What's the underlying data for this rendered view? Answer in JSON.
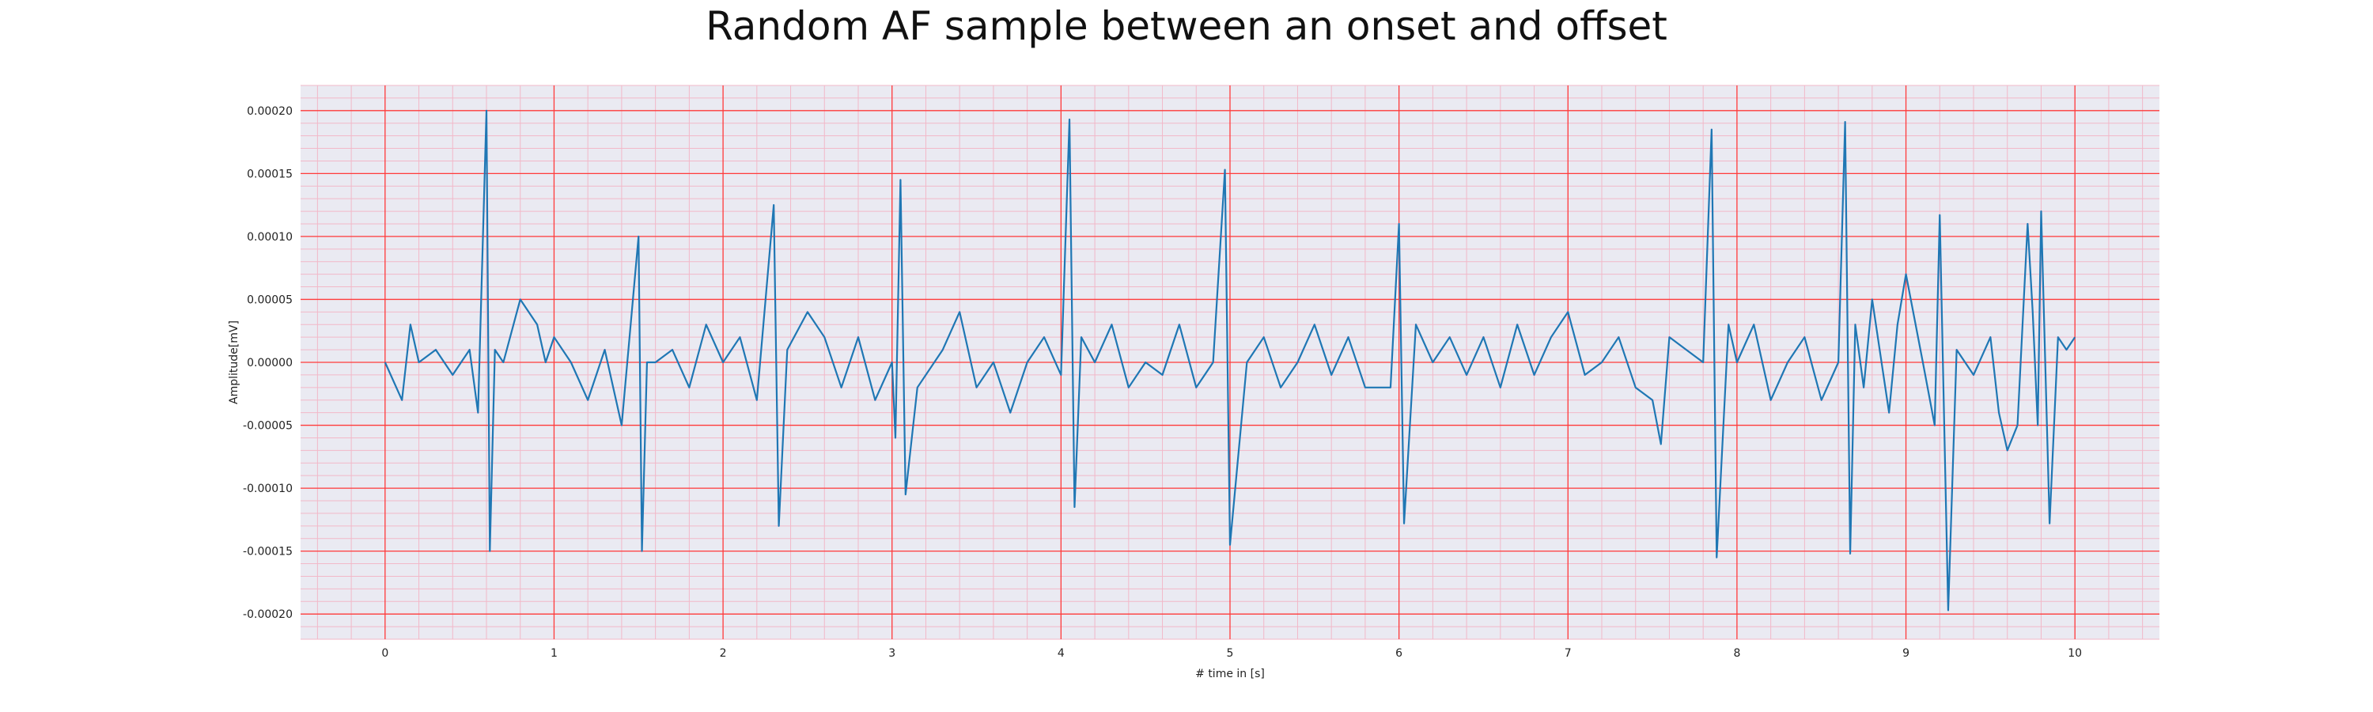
{
  "chart_data": {
    "type": "line",
    "title": "Random AF sample between an onset and offset",
    "xlabel": "# time in [s]",
    "ylabel": "Amplitude[mV]",
    "xlim": [
      -0.5,
      10.5
    ],
    "ylim": [
      -0.00022,
      0.00022
    ],
    "x_ticks": [
      0,
      1,
      2,
      3,
      4,
      5,
      6,
      7,
      8,
      9,
      10
    ],
    "x_tick_labels": [
      "0",
      "1",
      "2",
      "3",
      "4",
      "5",
      "6",
      "7",
      "8",
      "9",
      "10"
    ],
    "y_ticks": [
      -0.0002,
      -0.00015,
      -0.0001,
      -5e-05,
      0,
      5e-05,
      0.0001,
      0.00015,
      0.0002
    ],
    "y_tick_labels": [
      "-0.00020",
      "-0.00015",
      "-0.00010",
      "-0.00005",
      "0.00000",
      "0.00005",
      "0.00010",
      "0.00015",
      "0.00020"
    ],
    "grid": true,
    "minor_grid": true,
    "colors": {
      "background": "#eaeaf2",
      "major_grid": "#ff3b3b",
      "minor_grid": "#f2b8c8",
      "line": "#1f77b4"
    },
    "series": [
      {
        "x": [
          0.0,
          0.1,
          0.15,
          0.2,
          0.3,
          0.4,
          0.5,
          0.55,
          0.6,
          0.62,
          0.65,
          0.7,
          0.8,
          0.9,
          0.95,
          1.0,
          1.1,
          1.2,
          1.3,
          1.4,
          1.5,
          1.52,
          1.55,
          1.6,
          1.7,
          1.8,
          1.9,
          2.0,
          2.1,
          2.2,
          2.3,
          2.33,
          2.38,
          2.5,
          2.6,
          2.7,
          2.8,
          2.9,
          3.0,
          3.02,
          3.05,
          3.08,
          3.15,
          3.3,
          3.4,
          3.5,
          3.6,
          3.7,
          3.8,
          3.9,
          4.0,
          4.05,
          4.08,
          4.12,
          4.2,
          4.3,
          4.4,
          4.5,
          4.6,
          4.7,
          4.8,
          4.9,
          4.97,
          5.0,
          5.1,
          5.2,
          5.3,
          5.4,
          5.5,
          5.6,
          5.7,
          5.8,
          5.95,
          6.0,
          6.03,
          6.1,
          6.2,
          6.3,
          6.4,
          6.5,
          6.6,
          6.7,
          6.8,
          6.9,
          7.0,
          7.1,
          7.2,
          7.3,
          7.4,
          7.5,
          7.55,
          7.6,
          7.7,
          7.8,
          7.85,
          7.88,
          7.95,
          8.0,
          8.1,
          8.2,
          8.3,
          8.4,
          8.5,
          8.6,
          8.64,
          8.67,
          8.7,
          8.75,
          8.8,
          8.9,
          8.95,
          9.0,
          9.1,
          9.17,
          9.2,
          9.25,
          9.3,
          9.4,
          9.5,
          9.55,
          9.6,
          9.66,
          9.72,
          9.75,
          9.78,
          9.8,
          9.85,
          9.9,
          9.95,
          10.0
        ],
        "y": [
          0.0,
          -3e-05,
          3e-05,
          0.0,
          1e-05,
          -1e-05,
          1e-05,
          -4e-05,
          0.0002,
          -0.00015,
          1e-05,
          0.0,
          5e-05,
          3e-05,
          0.0,
          2e-05,
          0.0,
          -3e-05,
          1e-05,
          -5e-05,
          0.0001,
          -0.00015,
          0.0,
          0.0,
          1e-05,
          -2e-05,
          3e-05,
          0.0,
          2e-05,
          -3e-05,
          0.000125,
          -0.00013,
          1e-05,
          4e-05,
          2e-05,
          -2e-05,
          2e-05,
          -3e-05,
          0.0,
          -6e-05,
          0.000145,
          -0.000105,
          -2e-05,
          1e-05,
          4e-05,
          -2e-05,
          0.0,
          -4e-05,
          0.0,
          2e-05,
          -1e-05,
          0.000193,
          -0.000115,
          2e-05,
          0.0,
          3e-05,
          -2e-05,
          0.0,
          -1e-05,
          3e-05,
          -2e-05,
          0.0,
          0.000153,
          -0.000145,
          0.0,
          2e-05,
          -2e-05,
          0.0,
          3e-05,
          -1e-05,
          2e-05,
          -2e-05,
          -2e-05,
          0.00011,
          -0.000128,
          3e-05,
          0.0,
          2e-05,
          -1e-05,
          2e-05,
          -2e-05,
          3e-05,
          -1e-05,
          2e-05,
          4e-05,
          -1e-05,
          0.0,
          2e-05,
          -2e-05,
          -3e-05,
          -6.5e-05,
          2e-05,
          1e-05,
          0.0,
          0.000185,
          -0.000155,
          3e-05,
          0.0,
          3e-05,
          -3e-05,
          0.0,
          2e-05,
          -3e-05,
          0.0,
          0.000191,
          -0.000152,
          3e-05,
          -2e-05,
          5e-05,
          -4e-05,
          3e-05,
          7e-05,
          0.0,
          -5e-05,
          0.000117,
          -0.000197,
          1e-05,
          -1e-05,
          2e-05,
          -4e-05,
          -7e-05,
          -5e-05,
          0.00011,
          4e-05,
          -5e-05,
          0.00012,
          -0.000128,
          2e-05,
          1e-05,
          2e-05
        ]
      }
    ]
  }
}
